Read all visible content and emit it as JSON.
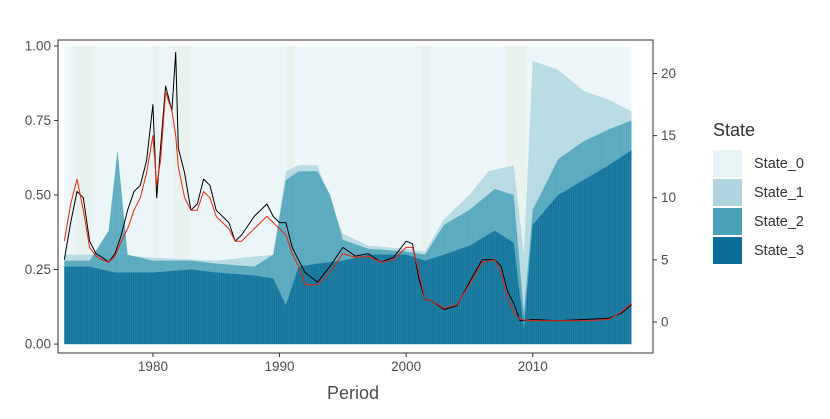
{
  "chart_data": {
    "type": "area",
    "title": "",
    "xlabel": "Period",
    "ylabel_left": "",
    "ylabel_right": "",
    "xlim": [
      1972.5,
      2019.5
    ],
    "ylim_left": [
      -0.03,
      1.02
    ],
    "ylim_right": [
      -2.5,
      22.7
    ],
    "x_ticks": [
      1980,
      1990,
      2000,
      2010
    ],
    "y_ticks_left": [
      "0.00",
      "0.25",
      "0.50",
      "0.75",
      "1.00"
    ],
    "y_ticks_right": [
      "0",
      "5",
      "10",
      "15",
      "20"
    ],
    "grid": false,
    "legend": {
      "title": "State",
      "position": "right",
      "entries": [
        "State_0",
        "State_1",
        "State_2",
        "State_3"
      ]
    },
    "colors": {
      "State_0": "#e9f4f7",
      "State_1": "#afd6df",
      "State_2": "#4aa2b8",
      "State_3": "#0a6e98",
      "recession": "#e6e0b7",
      "black_line": "#000000",
      "red_line": "#e8250f"
    },
    "recessions": [
      [
        1973.9,
        1975.2
      ],
      [
        1980.0,
        1980.5
      ],
      [
        1981.6,
        1982.9
      ],
      [
        1990.6,
        1991.2
      ],
      [
        2001.2,
        2001.9
      ],
      [
        2007.9,
        2009.5
      ]
    ],
    "series": [
      {
        "name": "State_3",
        "axis": "left",
        "x": [
          1973.0,
          1975.0,
          1977.0,
          1978.0,
          1980.0,
          1983.0,
          1985.0,
          1988.0,
          1989.5,
          1990.5,
          1991.5,
          1993.0,
          1995.0,
          1997.0,
          2000.0,
          2001.5,
          2003.0,
          2005.0,
          2007.0,
          2008.5,
          2009.3,
          2010.0,
          2012.0,
          2014.0,
          2016.0,
          2017.8
        ],
        "values": [
          0.26,
          0.26,
          0.24,
          0.24,
          0.24,
          0.25,
          0.24,
          0.23,
          0.22,
          0.13,
          0.26,
          0.27,
          0.28,
          0.3,
          0.3,
          0.28,
          0.3,
          0.33,
          0.38,
          0.34,
          0.05,
          0.4,
          0.5,
          0.55,
          0.6,
          0.65
        ]
      },
      {
        "name": "State_2",
        "axis": "left",
        "x": [
          1973.0,
          1975.0,
          1976.5,
          1977.2,
          1978.0,
          1980.0,
          1983.0,
          1985.0,
          1988.0,
          1989.5,
          1990.5,
          1991.5,
          1993.0,
          1994.0,
          1995.0,
          1997.0,
          2000.0,
          2001.5,
          2003.0,
          2005.0,
          2007.0,
          2008.5,
          2009.3,
          2010.0,
          2012.0,
          2014.0,
          2016.0,
          2017.8
        ],
        "values": [
          0.28,
          0.28,
          0.38,
          0.65,
          0.3,
          0.28,
          0.28,
          0.27,
          0.26,
          0.3,
          0.55,
          0.58,
          0.58,
          0.5,
          0.35,
          0.32,
          0.31,
          0.3,
          0.4,
          0.45,
          0.52,
          0.5,
          0.1,
          0.45,
          0.62,
          0.68,
          0.72,
          0.75
        ]
      },
      {
        "name": "State_1",
        "axis": "left",
        "x": [
          1973.0,
          1975.0,
          1977.0,
          1980.0,
          1985.0,
          1989.5,
          1990.5,
          1991.5,
          1993.0,
          1995.0,
          1997.0,
          2000.0,
          2001.5,
          2003.0,
          2005.0,
          2006.5,
          2008.5,
          2009.3,
          2010.0,
          2012.0,
          2014.0,
          2016.0,
          2017.8
        ],
        "values": [
          0.3,
          0.3,
          0.3,
          0.29,
          0.28,
          0.3,
          0.58,
          0.6,
          0.6,
          0.37,
          0.33,
          0.32,
          0.31,
          0.42,
          0.5,
          0.58,
          0.6,
          0.3,
          0.95,
          0.92,
          0.85,
          0.82,
          0.78
        ]
      },
      {
        "name": "State_0",
        "axis": "left",
        "x": [
          1973.0,
          2017.8
        ],
        "values": [
          1.0,
          1.0
        ]
      },
      {
        "name": "",
        "axis": "right",
        "color": "black",
        "x": [
          1973.0,
          1973.5,
          1974.0,
          1974.5,
          1975.0,
          1975.5,
          1976.0,
          1976.5,
          1977.0,
          1977.5,
          1978.0,
          1978.5,
          1979.0,
          1979.5,
          1980.0,
          1980.3,
          1980.6,
          1981.0,
          1981.5,
          1981.8,
          1982.0,
          1982.5,
          1983.0,
          1983.5,
          1984.0,
          1984.5,
          1985.0,
          1986.0,
          1986.5,
          1987.0,
          1988.0,
          1989.0,
          1989.5,
          1990.0,
          1990.5,
          1991.0,
          1991.5,
          1992.0,
          1993.0,
          1994.0,
          1995.0,
          1996.0,
          1997.0,
          1998.0,
          1999.0,
          2000.0,
          2000.5,
          2001.0,
          2001.5,
          2002.0,
          2003.0,
          2004.0,
          2005.0,
          2006.0,
          2007.0,
          2007.5,
          2008.0,
          2008.5,
          2009.0,
          2010.0,
          2012.0,
          2014.0,
          2016.0,
          2017.0,
          2017.8
        ],
        "values": [
          5.0,
          8.0,
          10.5,
          10.0,
          6.5,
          5.5,
          5.2,
          4.8,
          5.5,
          7.0,
          9.0,
          10.5,
          11.0,
          13.0,
          17.5,
          10.0,
          14.0,
          19.0,
          17.0,
          21.7,
          14.0,
          12.0,
          9.0,
          9.5,
          11.5,
          11.0,
          9.0,
          8.0,
          6.5,
          7.0,
          8.5,
          9.5,
          8.5,
          8.0,
          8.0,
          6.0,
          5.0,
          4.0,
          3.2,
          4.5,
          6.0,
          5.3,
          5.5,
          4.8,
          5.2,
          6.5,
          6.3,
          3.5,
          1.8,
          1.7,
          1.0,
          1.3,
          3.2,
          5.0,
          5.0,
          4.5,
          2.5,
          1.5,
          0.1,
          0.2,
          0.1,
          0.2,
          0.3,
          0.7,
          1.4
        ]
      },
      {
        "name": "",
        "axis": "right",
        "color": "red",
        "x": [
          1973.0,
          1973.5,
          1974.0,
          1974.5,
          1975.0,
          1975.5,
          1976.0,
          1976.5,
          1977.0,
          1977.5,
          1978.0,
          1978.5,
          1979.0,
          1979.5,
          1980.0,
          1980.3,
          1980.6,
          1981.0,
          1981.5,
          1981.8,
          1982.0,
          1982.5,
          1983.0,
          1983.5,
          1984.0,
          1984.5,
          1985.0,
          1986.0,
          1986.5,
          1987.0,
          1988.0,
          1989.0,
          1989.5,
          1990.0,
          1990.5,
          1991.0,
          1991.5,
          1992.0,
          1993.0,
          1994.0,
          1995.0,
          1996.0,
          1997.0,
          1998.0,
          1999.0,
          2000.0,
          2000.5,
          2001.0,
          2001.5,
          2002.0,
          2003.0,
          2004.0,
          2005.0,
          2006.0,
          2007.0,
          2007.5,
          2008.0,
          2008.5,
          2009.0,
          2010.0,
          2012.0,
          2014.0,
          2016.0,
          2017.0,
          2017.8
        ],
        "values": [
          6.5,
          9.5,
          11.5,
          9.0,
          6.0,
          5.3,
          5.0,
          4.8,
          5.3,
          6.5,
          7.5,
          9.0,
          10.0,
          12.0,
          15.0,
          11.0,
          13.0,
          18.5,
          17.0,
          15.0,
          12.5,
          10.0,
          9.0,
          9.0,
          10.5,
          10.0,
          8.5,
          7.5,
          6.5,
          6.5,
          7.5,
          8.5,
          8.0,
          7.5,
          7.0,
          5.5,
          4.5,
          3.0,
          3.0,
          4.0,
          5.5,
          5.2,
          5.3,
          4.8,
          5.0,
          6.0,
          6.0,
          4.0,
          1.8,
          1.7,
          1.1,
          1.4,
          3.0,
          4.8,
          5.0,
          4.0,
          2.0,
          0.8,
          0.2,
          0.1,
          0.1,
          0.1,
          0.2,
          0.8,
          1.5
        ]
      }
    ]
  }
}
